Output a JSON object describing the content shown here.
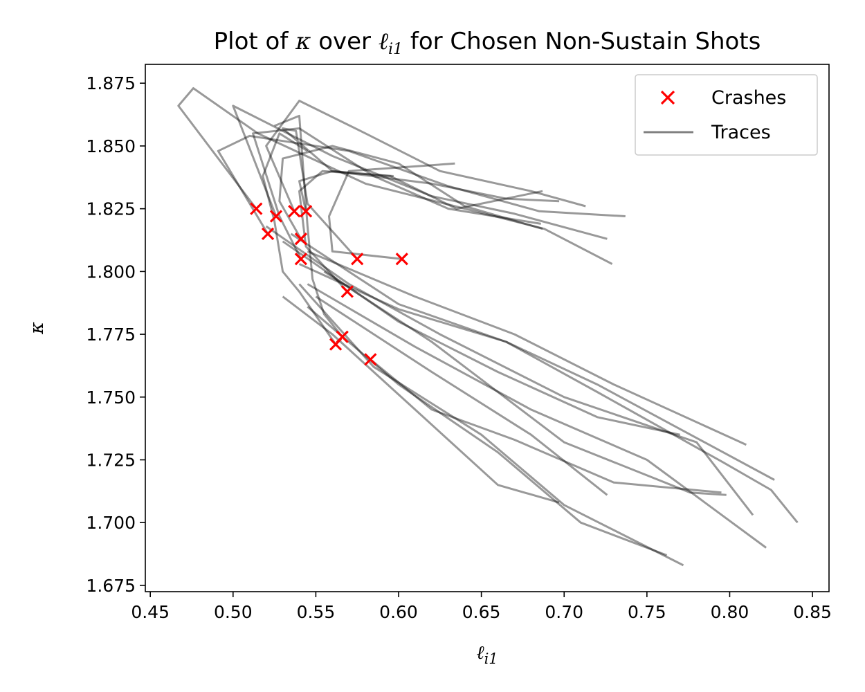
{
  "chart_data": {
    "type": "line",
    "title_parts": [
      "Plot of ",
      "κ",
      " over ",
      "ℓ",
      "i1",
      " for Chosen Non-Sustain Shots"
    ],
    "xlabel_parts": [
      "ℓ",
      "i1"
    ],
    "ylabel": "κ",
    "xlim": [
      0.447,
      0.86
    ],
    "ylim": [
      1.6725,
      1.8825
    ],
    "xticks": [
      0.45,
      0.5,
      0.55,
      0.6,
      0.65,
      0.7,
      0.75,
      0.8,
      0.85
    ],
    "xtick_labels": [
      "0.45",
      "0.50",
      "0.55",
      "0.60",
      "0.65",
      "0.70",
      "0.75",
      "0.80",
      "0.85"
    ],
    "yticks": [
      1.675,
      1.7,
      1.725,
      1.75,
      1.775,
      1.8,
      1.825,
      1.85,
      1.875
    ],
    "ytick_labels": [
      "1.675",
      "1.700",
      "1.725",
      "1.750",
      "1.775",
      "1.800",
      "1.825",
      "1.850",
      "1.875"
    ],
    "legend": {
      "placement": "top-right",
      "entries": [
        {
          "label": "Crashes",
          "marker": "x",
          "color": "#ff0000"
        },
        {
          "label": "Traces",
          "marker": "line",
          "color": "#808080"
        }
      ]
    },
    "trace_color": "#000000",
    "trace_opacity": 0.4,
    "crash_color": "#ff0000",
    "crashes": [
      [
        0.514,
        1.825
      ],
      [
        0.526,
        1.822
      ],
      [
        0.521,
        1.815
      ],
      [
        0.537,
        1.824
      ],
      [
        0.544,
        1.824
      ],
      [
        0.541,
        1.813
      ],
      [
        0.541,
        1.805
      ],
      [
        0.575,
        1.805
      ],
      [
        0.602,
        1.805
      ],
      [
        0.569,
        1.792
      ],
      [
        0.566,
        1.774
      ],
      [
        0.562,
        1.771
      ],
      [
        0.583,
        1.765
      ]
    ],
    "series": [
      {
        "values": [
          [
            0.514,
            1.825
          ],
          [
            0.467,
            1.866
          ],
          [
            0.476,
            1.873
          ],
          [
            0.515,
            1.855
          ],
          [
            0.58,
            1.835
          ],
          [
            0.64,
            1.825
          ],
          [
            0.688,
            1.817
          ],
          [
            0.729,
            1.803
          ]
        ]
      },
      {
        "values": [
          [
            0.526,
            1.822
          ],
          [
            0.5,
            1.866
          ],
          [
            0.56,
            1.846
          ],
          [
            0.62,
            1.83
          ],
          [
            0.67,
            1.823
          ],
          [
            0.726,
            1.813
          ]
        ]
      },
      {
        "values": [
          [
            0.521,
            1.815
          ],
          [
            0.491,
            1.848
          ],
          [
            0.51,
            1.854
          ],
          [
            0.57,
            1.848
          ],
          [
            0.63,
            1.834
          ],
          [
            0.685,
            1.824
          ],
          [
            0.737,
            1.822
          ]
        ]
      },
      {
        "values": [
          [
            0.537,
            1.824
          ],
          [
            0.52,
            1.85
          ],
          [
            0.54,
            1.868
          ],
          [
            0.58,
            1.855
          ],
          [
            0.625,
            1.84
          ],
          [
            0.68,
            1.832
          ],
          [
            0.713,
            1.826
          ]
        ]
      },
      {
        "values": [
          [
            0.544,
            1.824
          ],
          [
            0.54,
            1.836
          ],
          [
            0.56,
            1.84
          ],
          [
            0.62,
            1.835
          ],
          [
            0.665,
            1.829
          ],
          [
            0.697,
            1.828
          ]
        ]
      },
      {
        "values": [
          [
            0.541,
            1.813
          ],
          [
            0.528,
            1.828
          ],
          [
            0.53,
            1.845
          ],
          [
            0.56,
            1.85
          ],
          [
            0.6,
            1.843
          ],
          [
            0.64,
            1.826
          ],
          [
            0.687,
            1.817
          ]
        ]
      },
      {
        "values": [
          [
            0.541,
            1.805
          ],
          [
            0.528,
            1.822
          ],
          [
            0.512,
            1.855
          ],
          [
            0.54,
            1.857
          ],
          [
            0.585,
            1.838
          ],
          [
            0.63,
            1.825
          ],
          [
            0.686,
            1.819
          ]
        ]
      },
      {
        "values": [
          [
            0.575,
            1.805
          ],
          [
            0.545,
            1.827
          ],
          [
            0.538,
            1.856
          ],
          [
            0.53,
            1.857
          ],
          [
            0.56,
            1.84
          ],
          [
            0.595,
            1.838
          ],
          [
            0.635,
            1.825
          ],
          [
            0.687,
            1.832
          ]
        ]
      },
      {
        "values": [
          [
            0.602,
            1.805
          ],
          [
            0.56,
            1.808
          ],
          [
            0.558,
            1.822
          ],
          [
            0.57,
            1.84
          ],
          [
            0.634,
            1.843
          ]
        ]
      },
      {
        "values": [
          [
            0.569,
            1.792
          ],
          [
            0.544,
            1.81
          ],
          [
            0.54,
            1.832
          ],
          [
            0.554,
            1.84
          ],
          [
            0.597,
            1.838
          ]
        ]
      },
      {
        "values": [
          [
            0.566,
            1.774
          ],
          [
            0.555,
            1.783
          ],
          [
            0.548,
            1.797
          ],
          [
            0.545,
            1.818
          ],
          [
            0.54,
            1.862
          ],
          [
            0.525,
            1.858
          ]
        ]
      },
      {
        "values": [
          [
            0.562,
            1.771
          ],
          [
            0.54,
            1.792
          ],
          [
            0.53,
            1.8
          ],
          [
            0.525,
            1.82
          ],
          [
            0.518,
            1.838
          ],
          [
            0.528,
            1.855
          ],
          [
            0.545,
            1.848
          ]
        ]
      },
      {
        "values": [
          [
            0.583,
            1.765
          ],
          [
            0.62,
            1.745
          ],
          [
            0.67,
            1.733
          ],
          [
            0.73,
            1.716
          ],
          [
            0.795,
            1.712
          ]
        ]
      },
      {
        "values": [
          [
            0.53,
            1.812
          ],
          [
            0.6,
            1.78
          ],
          [
            0.66,
            1.76
          ],
          [
            0.72,
            1.742
          ],
          [
            0.77,
            1.735
          ]
        ]
      },
      {
        "values": [
          [
            0.545,
            1.808
          ],
          [
            0.61,
            1.79
          ],
          [
            0.67,
            1.775
          ],
          [
            0.73,
            1.755
          ],
          [
            0.81,
            1.731
          ]
        ]
      },
      {
        "values": [
          [
            0.54,
            1.803
          ],
          [
            0.6,
            1.785
          ],
          [
            0.665,
            1.772
          ],
          [
            0.72,
            1.755
          ],
          [
            0.827,
            1.717
          ]
        ]
      },
      {
        "values": [
          [
            0.52,
            1.818
          ],
          [
            0.57,
            1.795
          ],
          [
            0.625,
            1.775
          ],
          [
            0.7,
            1.75
          ],
          [
            0.78,
            1.732
          ],
          [
            0.814,
            1.703
          ]
        ]
      },
      {
        "values": [
          [
            0.535,
            1.815
          ],
          [
            0.6,
            1.787
          ],
          [
            0.665,
            1.772
          ],
          [
            0.72,
            1.752
          ],
          [
            0.796,
            1.724
          ],
          [
            0.825,
            1.713
          ],
          [
            0.841,
            1.7
          ]
        ]
      },
      {
        "values": [
          [
            0.545,
            1.795
          ],
          [
            0.61,
            1.77
          ],
          [
            0.68,
            1.745
          ],
          [
            0.75,
            1.725
          ],
          [
            0.822,
            1.69
          ]
        ]
      },
      {
        "values": [
          [
            0.55,
            1.79
          ],
          [
            0.62,
            1.76
          ],
          [
            0.68,
            1.735
          ],
          [
            0.726,
            1.711
          ]
        ]
      },
      {
        "values": [
          [
            0.545,
            1.786
          ],
          [
            0.6,
            1.755
          ],
          [
            0.66,
            1.728
          ],
          [
            0.71,
            1.7
          ],
          [
            0.762,
            1.687
          ]
        ]
      },
      {
        "values": [
          [
            0.53,
            1.79
          ],
          [
            0.56,
            1.775
          ],
          [
            0.61,
            1.745
          ],
          [
            0.66,
            1.715
          ],
          [
            0.697,
            1.708
          ]
        ]
      },
      {
        "values": [
          [
            0.54,
            1.795
          ],
          [
            0.585,
            1.762
          ],
          [
            0.65,
            1.735
          ],
          [
            0.7,
            1.707
          ],
          [
            0.772,
            1.683
          ]
        ]
      },
      {
        "values": [
          [
            0.555,
            1.8
          ],
          [
            0.62,
            1.772
          ],
          [
            0.7,
            1.732
          ],
          [
            0.776,
            1.712
          ],
          [
            0.798,
            1.711
          ]
        ]
      }
    ]
  }
}
